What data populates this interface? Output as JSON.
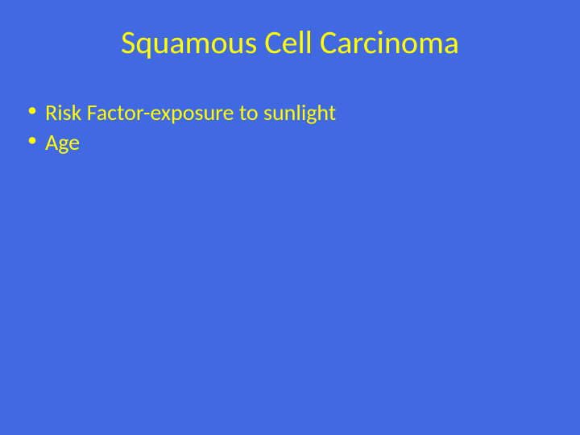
{
  "slide": {
    "title": "Squamous Cell Carcinoma",
    "bullets": [
      "Risk Factor-exposure to sunlight",
      "Age"
    ],
    "background_color": "#4169e1",
    "text_color": "#ffff00",
    "title_fontsize": 40,
    "bullet_fontsize": 28,
    "font_family": "Calibri"
  }
}
